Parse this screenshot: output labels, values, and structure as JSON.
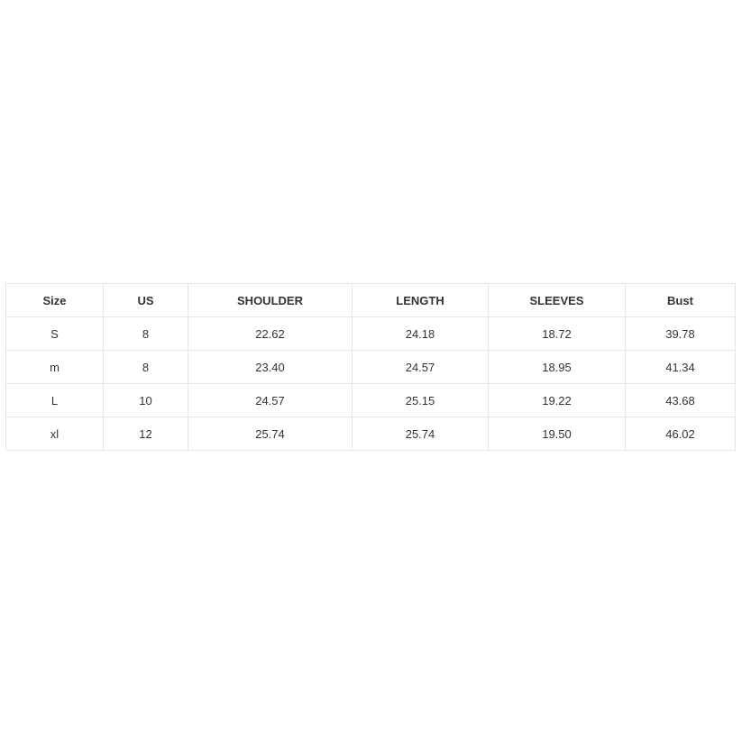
{
  "size_chart": {
    "headers": [
      "Size",
      "US",
      "SHOULDER",
      "LENGTH",
      "SLEEVES",
      "Bust"
    ],
    "rows": [
      [
        "S",
        "8",
        "22.62",
        "24.18",
        "18.72",
        "39.78"
      ],
      [
        "m",
        "8",
        "23.40",
        "24.57",
        "18.95",
        "41.34"
      ],
      [
        "L",
        "10",
        "24.57",
        "25.15",
        "19.22",
        "43.68"
      ],
      [
        "xl",
        "12",
        "25.74",
        "25.74",
        "19.50",
        "46.02"
      ]
    ]
  }
}
